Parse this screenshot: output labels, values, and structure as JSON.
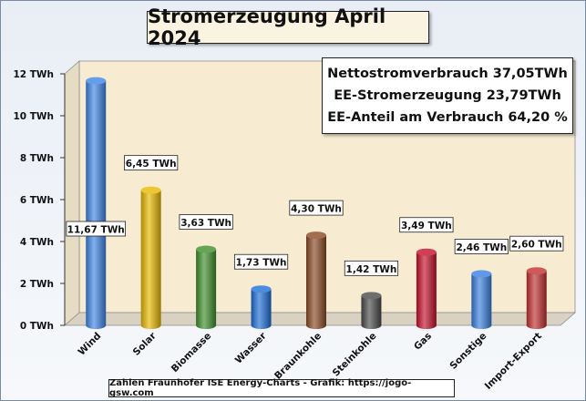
{
  "chart_data": {
    "type": "bar",
    "title": "Stromerzeugung April 2024",
    "xlabel": "",
    "ylabel": "",
    "ylim": [
      0,
      12
    ],
    "yticks": [
      "0 TWh",
      "2 TWh",
      "4 TWh",
      "6 TWh",
      "8 TWh",
      "10 TWh",
      "12 TWh"
    ],
    "categories": [
      "Wind",
      "Solar",
      "Biomasse",
      "Wasser",
      "Braunkohle",
      "Steinkohle",
      "Gas",
      "Sonstige",
      "Import-Export"
    ],
    "values": [
      11.67,
      6.45,
      3.63,
      1.73,
      4.3,
      1.42,
      3.49,
      2.46,
      2.6
    ],
    "data_labels": [
      "11,67 TWh",
      "6,45 TWh",
      "3,63 TWh",
      "1,73 TWh",
      "4,30 TWh",
      "1,42 TWh",
      "3,49 TWh",
      "2,46 TWh",
      "2,60 TWh"
    ],
    "colors": [
      "#3f86e6",
      "#e8b800",
      "#3f8f2a",
      "#1f6fd8",
      "#8a4a24",
      "#4a4a4a",
      "#c4102a",
      "#3a7fe0",
      "#c23030"
    ],
    "grid": false,
    "annotations": [
      "Nettostromverbrauch 37,05TWh",
      "EE-Stromerzeugung 23,79TWh",
      "EE-Anteil am Verbrauch 64,20 %"
    ]
  },
  "footer": "Zahlen Fraunhofer ISE  Energy-Charts - Grafik: https://jogo-gsw.com"
}
